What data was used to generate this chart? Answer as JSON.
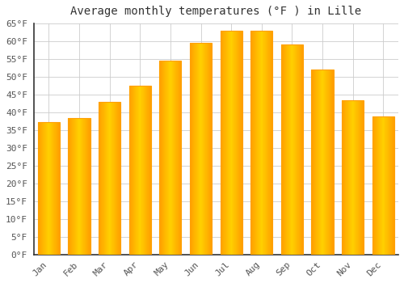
{
  "title": "Average monthly temperatures (°F ) in Lille",
  "months": [
    "Jan",
    "Feb",
    "Mar",
    "Apr",
    "May",
    "Jun",
    "Jul",
    "Aug",
    "Sep",
    "Oct",
    "Nov",
    "Dec"
  ],
  "values": [
    37.4,
    38.5,
    43.0,
    47.5,
    54.5,
    59.5,
    63.0,
    63.0,
    59.0,
    52.0,
    43.5,
    39.0
  ],
  "bar_color_center": "#FFD040",
  "bar_color_edge": "#FFA000",
  "background_color": "#FFFFFF",
  "plot_bg_color": "#FFFFFF",
  "grid_color": "#CCCCCC",
  "axis_color": "#333333",
  "tick_color": "#555555",
  "title_fontsize": 10,
  "tick_fontsize": 8,
  "ylim": [
    0,
    65
  ],
  "yticks": [
    0,
    5,
    10,
    15,
    20,
    25,
    30,
    35,
    40,
    45,
    50,
    55,
    60,
    65
  ]
}
